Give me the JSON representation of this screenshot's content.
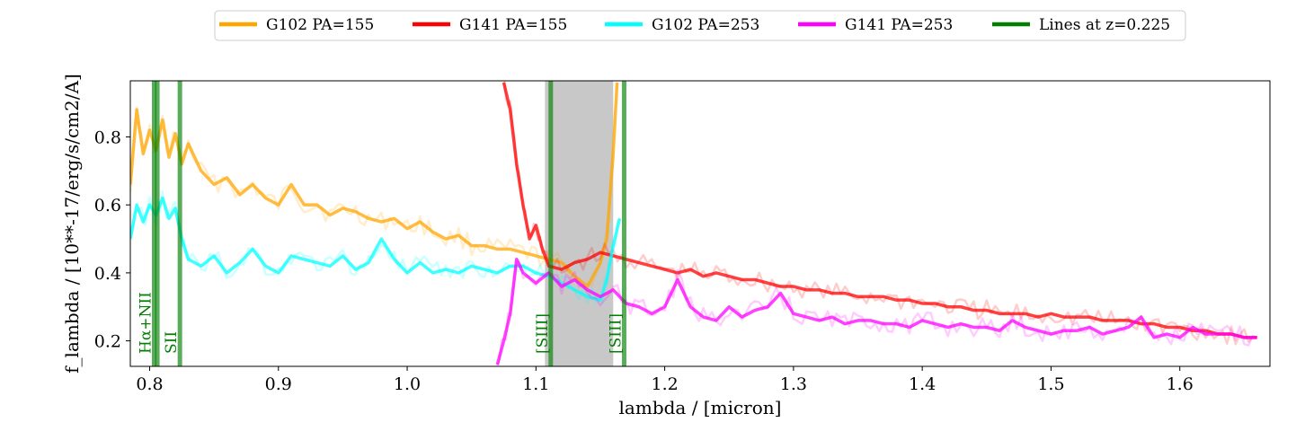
{
  "chart_data": {
    "type": "line",
    "xlabel": "lambda / [micron]",
    "ylabel": "f_lambda / [10**-17/erg/s/cm2/A]",
    "xlim": [
      0.785,
      1.67
    ],
    "ylim": [
      0.125,
      0.965
    ],
    "x_ticks": [
      0.8,
      0.9,
      1.0,
      1.1,
      1.2,
      1.3,
      1.4,
      1.5,
      1.6
    ],
    "x_tick_labels": [
      "0.8",
      "0.9",
      "1.0",
      "1.1",
      "1.2",
      "1.3",
      "1.4",
      "1.5",
      "1.6"
    ],
    "y_ticks": [
      0.2,
      0.4,
      0.6,
      0.8
    ],
    "y_tick_labels": [
      "0.2",
      "0.4",
      "0.6",
      "0.8"
    ],
    "grid": false,
    "legend_position": "top-center, outside plot",
    "legend": [
      {
        "label": "G102 PA=155",
        "color": "#ffa500"
      },
      {
        "label": "G141 PA=155",
        "color": "#ff0000"
      },
      {
        "label": "G102 PA=253",
        "color": "#00ffff"
      },
      {
        "label": "G141 PA=253",
        "color": "#ff00ff"
      },
      {
        "label": "Lines at z=0.225",
        "color": "#007f00"
      }
    ],
    "shaded_region": {
      "x": [
        1.107,
        1.16
      ],
      "color": "#c8c8c8"
    },
    "series": [
      {
        "name": "G102 PA=155",
        "color": "#ffa500",
        "x": [
          0.785,
          0.79,
          0.795,
          0.8,
          0.805,
          0.81,
          0.815,
          0.82,
          0.825,
          0.83,
          0.84,
          0.85,
          0.86,
          0.87,
          0.88,
          0.89,
          0.9,
          0.91,
          0.92,
          0.93,
          0.94,
          0.95,
          0.96,
          0.97,
          0.98,
          0.99,
          1.0,
          1.01,
          1.02,
          1.03,
          1.04,
          1.05,
          1.06,
          1.07,
          1.08,
          1.09,
          1.1,
          1.11,
          1.12,
          1.13,
          1.14,
          1.15,
          1.155,
          1.16,
          1.163
        ],
        "y": [
          0.66,
          0.88,
          0.75,
          0.82,
          0.76,
          0.85,
          0.74,
          0.81,
          0.72,
          0.78,
          0.7,
          0.66,
          0.68,
          0.63,
          0.66,
          0.62,
          0.6,
          0.66,
          0.6,
          0.6,
          0.57,
          0.59,
          0.58,
          0.56,
          0.55,
          0.56,
          0.53,
          0.55,
          0.52,
          0.5,
          0.51,
          0.48,
          0.48,
          0.47,
          0.47,
          0.46,
          0.45,
          0.44,
          0.43,
          0.39,
          0.36,
          0.43,
          0.5,
          0.75,
          0.96
        ]
      },
      {
        "name": "G141 PA=155",
        "color": "#ff0000",
        "x": [
          1.075,
          1.08,
          1.085,
          1.09,
          1.095,
          1.1,
          1.105,
          1.11,
          1.12,
          1.13,
          1.14,
          1.15,
          1.16,
          1.17,
          1.18,
          1.19,
          1.2,
          1.21,
          1.22,
          1.23,
          1.24,
          1.25,
          1.26,
          1.27,
          1.28,
          1.29,
          1.3,
          1.31,
          1.32,
          1.33,
          1.34,
          1.35,
          1.36,
          1.37,
          1.38,
          1.39,
          1.4,
          1.41,
          1.42,
          1.43,
          1.44,
          1.45,
          1.46,
          1.47,
          1.48,
          1.49,
          1.5,
          1.51,
          1.52,
          1.53,
          1.54,
          1.55,
          1.56,
          1.57,
          1.58,
          1.59,
          1.6,
          1.61,
          1.62,
          1.63,
          1.64,
          1.65,
          1.66
        ],
        "y": [
          0.96,
          0.88,
          0.72,
          0.6,
          0.5,
          0.54,
          0.47,
          0.42,
          0.41,
          0.43,
          0.44,
          0.46,
          0.45,
          0.44,
          0.43,
          0.42,
          0.41,
          0.4,
          0.41,
          0.39,
          0.4,
          0.39,
          0.38,
          0.38,
          0.37,
          0.36,
          0.36,
          0.35,
          0.35,
          0.34,
          0.34,
          0.33,
          0.33,
          0.33,
          0.32,
          0.32,
          0.31,
          0.31,
          0.3,
          0.3,
          0.29,
          0.29,
          0.28,
          0.28,
          0.28,
          0.27,
          0.28,
          0.27,
          0.27,
          0.27,
          0.26,
          0.26,
          0.26,
          0.25,
          0.25,
          0.24,
          0.24,
          0.23,
          0.23,
          0.22,
          0.22,
          0.21,
          0.21
        ]
      },
      {
        "name": "G102 PA=253",
        "color": "#00ffff",
        "x": [
          0.785,
          0.79,
          0.795,
          0.8,
          0.805,
          0.81,
          0.815,
          0.82,
          0.825,
          0.83,
          0.84,
          0.85,
          0.86,
          0.87,
          0.88,
          0.89,
          0.9,
          0.91,
          0.92,
          0.93,
          0.94,
          0.95,
          0.96,
          0.97,
          0.98,
          0.99,
          1.0,
          1.01,
          1.02,
          1.03,
          1.04,
          1.05,
          1.06,
          1.07,
          1.08,
          1.09,
          1.1,
          1.11,
          1.12,
          1.13,
          1.14,
          1.15,
          1.155,
          1.16,
          1.165
        ],
        "y": [
          0.5,
          0.6,
          0.55,
          0.6,
          0.57,
          0.62,
          0.56,
          0.59,
          0.5,
          0.44,
          0.42,
          0.45,
          0.4,
          0.43,
          0.47,
          0.42,
          0.4,
          0.45,
          0.44,
          0.43,
          0.42,
          0.45,
          0.41,
          0.43,
          0.5,
          0.44,
          0.4,
          0.43,
          0.4,
          0.41,
          0.4,
          0.42,
          0.41,
          0.4,
          0.42,
          0.42,
          0.4,
          0.39,
          0.37,
          0.35,
          0.33,
          0.32,
          0.38,
          0.48,
          0.56
        ]
      },
      {
        "name": "G141 PA=253",
        "color": "#ff00ff",
        "x": [
          1.07,
          1.075,
          1.08,
          1.085,
          1.09,
          1.1,
          1.11,
          1.12,
          1.13,
          1.14,
          1.15,
          1.16,
          1.17,
          1.18,
          1.19,
          1.2,
          1.21,
          1.22,
          1.23,
          1.24,
          1.25,
          1.26,
          1.27,
          1.28,
          1.29,
          1.3,
          1.31,
          1.32,
          1.33,
          1.34,
          1.35,
          1.36,
          1.37,
          1.38,
          1.39,
          1.4,
          1.41,
          1.42,
          1.43,
          1.44,
          1.45,
          1.46,
          1.47,
          1.48,
          1.49,
          1.5,
          1.51,
          1.52,
          1.53,
          1.54,
          1.55,
          1.56,
          1.57,
          1.58,
          1.59,
          1.6,
          1.61,
          1.62,
          1.63,
          1.64,
          1.65,
          1.66
        ],
        "y": [
          0.13,
          0.2,
          0.28,
          0.44,
          0.4,
          0.37,
          0.4,
          0.36,
          0.38,
          0.35,
          0.33,
          0.35,
          0.31,
          0.3,
          0.28,
          0.3,
          0.38,
          0.3,
          0.27,
          0.26,
          0.3,
          0.27,
          0.29,
          0.3,
          0.34,
          0.28,
          0.27,
          0.26,
          0.27,
          0.25,
          0.26,
          0.26,
          0.25,
          0.25,
          0.24,
          0.26,
          0.25,
          0.24,
          0.25,
          0.24,
          0.24,
          0.23,
          0.26,
          0.24,
          0.23,
          0.22,
          0.23,
          0.23,
          0.24,
          0.22,
          0.23,
          0.24,
          0.27,
          0.21,
          0.22,
          0.21,
          0.24,
          0.22,
          0.22,
          0.22,
          0.21,
          0.21
        ]
      }
    ],
    "vertical_lines": [
      {
        "x": 0.8035,
        "label": "Hα+NII",
        "color": "#007f00"
      },
      {
        "x": 0.806,
        "label": "",
        "color": "#007f00"
      },
      {
        "x": 0.8235,
        "label": "SII",
        "color": "#007f00"
      },
      {
        "x": 1.1115,
        "label": "[SIII]",
        "color": "#007f00"
      },
      {
        "x": 1.1685,
        "label": "[SIII]",
        "color": "#007f00"
      }
    ]
  }
}
